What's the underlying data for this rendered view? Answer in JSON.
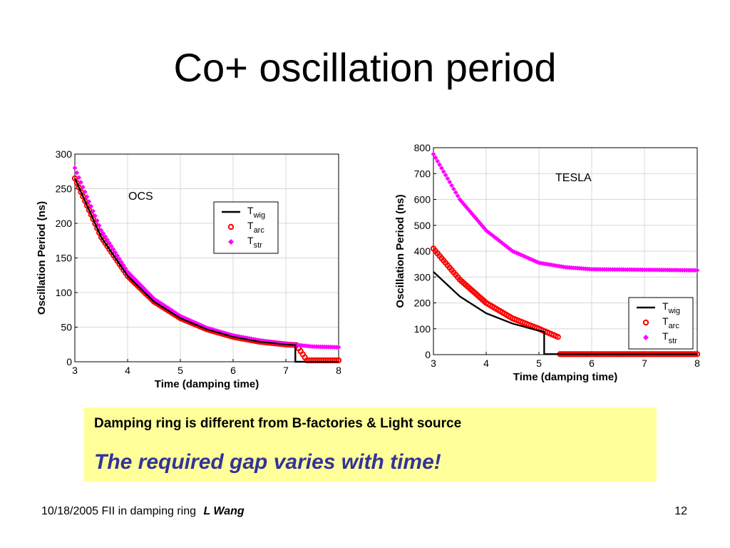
{
  "slide": {
    "title": "Co+ oscillation period",
    "callout_line1": "Damping ring is different from B-factories & Light source",
    "callout_line2": "The required gap varies with time!",
    "footer_text": "10/18/2005 FII in damping ring",
    "footer_author": "L Wang",
    "page_number": "12"
  },
  "chart_data": [
    {
      "type": "line",
      "annotation": "OCS",
      "xlabel": "Time  (damping time)",
      "ylabel": "Oscillation Period (ns)",
      "xlim": [
        3,
        8
      ],
      "ylim": [
        0,
        300
      ],
      "xticks": [
        3,
        4,
        5,
        6,
        7,
        8
      ],
      "yticks": [
        0,
        50,
        100,
        150,
        200,
        250,
        300
      ],
      "grid": true,
      "legend_position": "upper-right-inside",
      "series": [
        {
          "name": "T_wig",
          "style": "line",
          "color": "#000000",
          "points": [
            [
              3.0,
              265
            ],
            [
              3.5,
              180
            ],
            [
              4.0,
              124
            ],
            [
              4.5,
              87
            ],
            [
              5.0,
              63
            ],
            [
              5.5,
              47
            ],
            [
              6.0,
              36
            ],
            [
              6.5,
              29
            ],
            [
              7.0,
              25
            ],
            [
              7.18,
              24
            ],
            [
              7.18,
              0
            ],
            [
              8.0,
              0
            ]
          ]
        },
        {
          "name": "T_arc",
          "style": "circle",
          "color": "#ff0000",
          "points": [
            [
              3.0,
              265
            ],
            [
              3.5,
              180
            ],
            [
              4.0,
              124
            ],
            [
              4.5,
              87
            ],
            [
              5.0,
              63
            ],
            [
              5.5,
              47
            ],
            [
              6.0,
              36
            ],
            [
              6.5,
              29
            ],
            [
              7.0,
              25
            ],
            [
              7.2,
              24
            ],
            [
              7.4,
              2
            ],
            [
              8.0,
              2
            ]
          ]
        },
        {
          "name": "T_str",
          "style": "diamond",
          "color": "#ff00ff",
          "points": [
            [
              3.0,
              280
            ],
            [
              3.5,
              190
            ],
            [
              4.0,
              130
            ],
            [
              4.5,
              91
            ],
            [
              5.0,
              66
            ],
            [
              5.5,
              49
            ],
            [
              6.0,
              38
            ],
            [
              6.5,
              31
            ],
            [
              7.0,
              26
            ],
            [
              7.5,
              22
            ],
            [
              8.0,
              21
            ]
          ]
        }
      ]
    },
    {
      "type": "line",
      "annotation": "TESLA",
      "xlabel": "Time  (damping time)",
      "ylabel": "Oscillation Period (ns)",
      "xlim": [
        3,
        8
      ],
      "ylim": [
        0,
        800
      ],
      "xticks": [
        3,
        4,
        5,
        6,
        7,
        8
      ],
      "yticks": [
        0,
        100,
        200,
        300,
        400,
        500,
        600,
        700,
        800
      ],
      "grid": true,
      "legend_position": "lower-right-inside",
      "series": [
        {
          "name": "T_wig",
          "style": "line",
          "color": "#000000",
          "points": [
            [
              3.0,
              320
            ],
            [
              3.5,
              225
            ],
            [
              4.0,
              160
            ],
            [
              4.5,
              120
            ],
            [
              5.0,
              92
            ],
            [
              5.1,
              88
            ],
            [
              5.1,
              2
            ],
            [
              8.0,
              2
            ]
          ]
        },
        {
          "name": "T_arc",
          "style": "circle",
          "color": "#ff0000",
          "points": [
            [
              3.0,
              410
            ],
            [
              3.5,
              290
            ],
            [
              4.0,
              200
            ],
            [
              4.5,
              140
            ],
            [
              5.0,
              100
            ],
            [
              5.4,
              65
            ],
            [
              5.4,
              2
            ],
            [
              8.0,
              2
            ]
          ]
        },
        {
          "name": "T_str",
          "style": "diamond",
          "color": "#ff00ff",
          "points": [
            [
              3.0,
              775
            ],
            [
              3.5,
              600
            ],
            [
              4.0,
              480
            ],
            [
              4.5,
              400
            ],
            [
              5.0,
              355
            ],
            [
              5.5,
              338
            ],
            [
              6.0,
              330
            ],
            [
              7.0,
              328
            ],
            [
              8.0,
              326
            ]
          ]
        }
      ]
    }
  ]
}
